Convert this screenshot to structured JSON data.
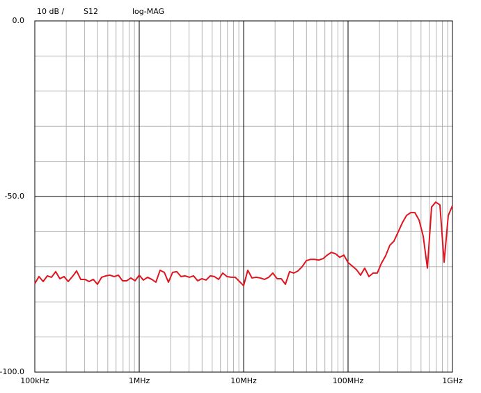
{
  "chart_data": {
    "type": "line",
    "scale_label": "10 dB /",
    "format": "log-MAG",
    "xscale": "log",
    "log_minor_grid": true,
    "ygrid_step": 10,
    "grid": true,
    "xlim": [
      100000,
      1000000000
    ],
    "ylim": [
      -100,
      0
    ],
    "xticks": [
      {
        "value": 100000,
        "label": "100kHz"
      },
      {
        "value": 1000000,
        "label": "1MHz"
      },
      {
        "value": 10000000,
        "label": "10MHz"
      },
      {
        "value": 100000000,
        "label": "100MHz"
      },
      {
        "value": 1000000000,
        "label": "1GHz"
      }
    ],
    "yticks": [
      {
        "value": 0,
        "label": "0.0"
      },
      {
        "value": -50,
        "label": "-50.0"
      },
      {
        "value": -100,
        "label": "-100.0"
      }
    ],
    "x": [
      100000,
      109600,
      120200,
      131800,
      144500,
      158500,
      173800,
      190500,
      208900,
      229100,
      251200,
      275400,
      302000,
      331100,
      363100,
      398100,
      436500,
      478600,
      524800,
      575400,
      631000,
      691800,
      758600,
      831800,
      912000,
      1000000,
      1096000,
      1202000,
      1318000,
      1445000,
      1585000,
      1738000,
      1905000,
      2089000,
      2291000,
      2512000,
      2754000,
      3020000,
      3311000,
      3631000,
      3981000,
      4365000,
      4786000,
      5248000,
      5754000,
      6310000,
      6918000,
      7586000,
      8318000,
      9120000,
      10000000,
      10960000,
      12020000,
      13180000,
      14450000,
      15850000,
      17380000,
      19050000,
      20890000,
      22910000,
      25120000,
      27540000,
      30200000,
      33110000,
      36310000,
      39810000,
      43650000,
      47860000,
      52480000,
      57540000,
      63100000,
      69180000,
      75860000,
      83180000,
      91200000,
      100000000,
      109600000,
      120200000,
      131800000,
      144500000,
      158500000,
      173800000,
      190500000,
      208900000,
      229100000,
      251200000,
      275400000,
      302000000,
      331100000,
      363100000,
      398100000,
      436500000,
      478600000,
      524800000,
      575400000,
      631000000,
      691800000,
      758600000,
      831800000,
      912000000,
      1000000000
    ],
    "series": [
      {
        "name": "S12",
        "color": "#e0141e",
        "values": [
          -74.8,
          -72.8,
          -74.2,
          -72.6,
          -73,
          -71.4,
          -73.4,
          -72.8,
          -74.2,
          -72.8,
          -71.2,
          -73.6,
          -73.6,
          -74.2,
          -73.6,
          -75,
          -73,
          -72.6,
          -72.4,
          -72.8,
          -72.4,
          -74,
          -74,
          -73.2,
          -74,
          -72.4,
          -73.8,
          -73,
          -73.6,
          -74.4,
          -71,
          -71.6,
          -74.4,
          -71.6,
          -71.4,
          -72.8,
          -72.6,
          -73,
          -72.6,
          -74,
          -73.4,
          -73.8,
          -72.6,
          -72.8,
          -73.6,
          -71.8,
          -72.8,
          -73,
          -73,
          -74.2,
          -75.4,
          -71,
          -73.2,
          -73,
          -73.2,
          -73.6,
          -73,
          -71.8,
          -73.4,
          -73.4,
          -75,
          -71.4,
          -71.8,
          -71.2,
          -70,
          -68.3,
          -67.9,
          -67.9,
          -68.1,
          -67.7,
          -66.7,
          -65.9,
          -66.3,
          -67.3,
          -66.7,
          -68.8,
          -69.8,
          -70.8,
          -72.4,
          -70.4,
          -72.8,
          -71.8,
          -71.8,
          -69,
          -66.9,
          -63.9,
          -62.7,
          -60.1,
          -57.5,
          -55.4,
          -54.6,
          -54.6,
          -56.7,
          -61.3,
          -70.4,
          -53,
          -51.6,
          -52.4,
          -68.7,
          -55.4,
          -52.6
        ]
      }
    ]
  }
}
